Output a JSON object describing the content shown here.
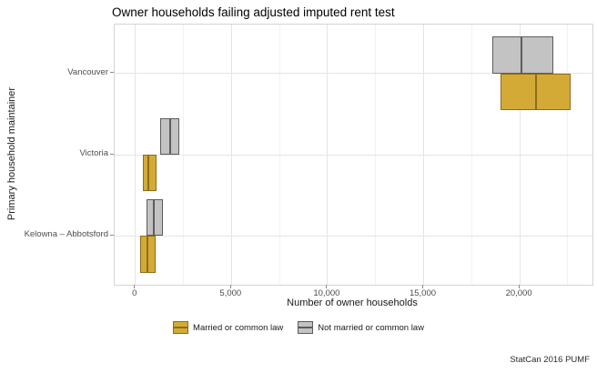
{
  "chart_data": {
    "type": "crossbar",
    "title": "Owner households failing adjusted imputed rent test",
    "xlabel": "Number of owner households",
    "ylabel": "Primary household maintainer",
    "caption": "StatCan 2016 PUMF",
    "categories": [
      "Vancouver",
      "Victoria",
      "Kelowna – Abbotsford"
    ],
    "xlim": [
      -1100,
      23760
    ],
    "x_ticks": [
      {
        "value": 0,
        "label": "0"
      },
      {
        "value": 5000,
        "label": "5,000"
      },
      {
        "value": 10000,
        "label": "10,000"
      },
      {
        "value": 15000,
        "label": "15,000"
      },
      {
        "value": 20000,
        "label": "20,000"
      }
    ],
    "x_minor_ticks": [
      2500,
      7500,
      12500,
      17500,
      22500
    ],
    "grid": true,
    "legend_position": "bottom",
    "series": [
      {
        "name": "Married or common law",
        "fill": "#d4aa37",
        "stroke": "#8e6c1a",
        "dodge": "below",
        "values": [
          {
            "category": "Vancouver",
            "min": 19000,
            "mid": 20850,
            "max": 22640
          },
          {
            "category": "Victoria",
            "min": 370,
            "mid": 710,
            "max": 1110
          },
          {
            "category": "Kelowna – Abbotsford",
            "min": 270,
            "mid": 640,
            "max": 1060
          }
        ]
      },
      {
        "name": "Not married or common law",
        "fill": "#c3c3c3",
        "stroke": "#5c5c5c",
        "dodge": "above",
        "values": [
          {
            "category": "Vancouver",
            "min": 18570,
            "mid": 20110,
            "max": 21760
          },
          {
            "category": "Victoria",
            "min": 1310,
            "mid": 1820,
            "max": 2290
          },
          {
            "category": "Kelowna – Abbotsford",
            "min": 590,
            "mid": 1000,
            "max": 1420
          }
        ]
      }
    ],
    "colors": {
      "grid_major": "#e4e4e4",
      "grid_minor": "#f2f2f2",
      "panel_border": "#d4d4d4",
      "tick_label": "#4d4d4d",
      "text": "#1a1a1a"
    }
  }
}
